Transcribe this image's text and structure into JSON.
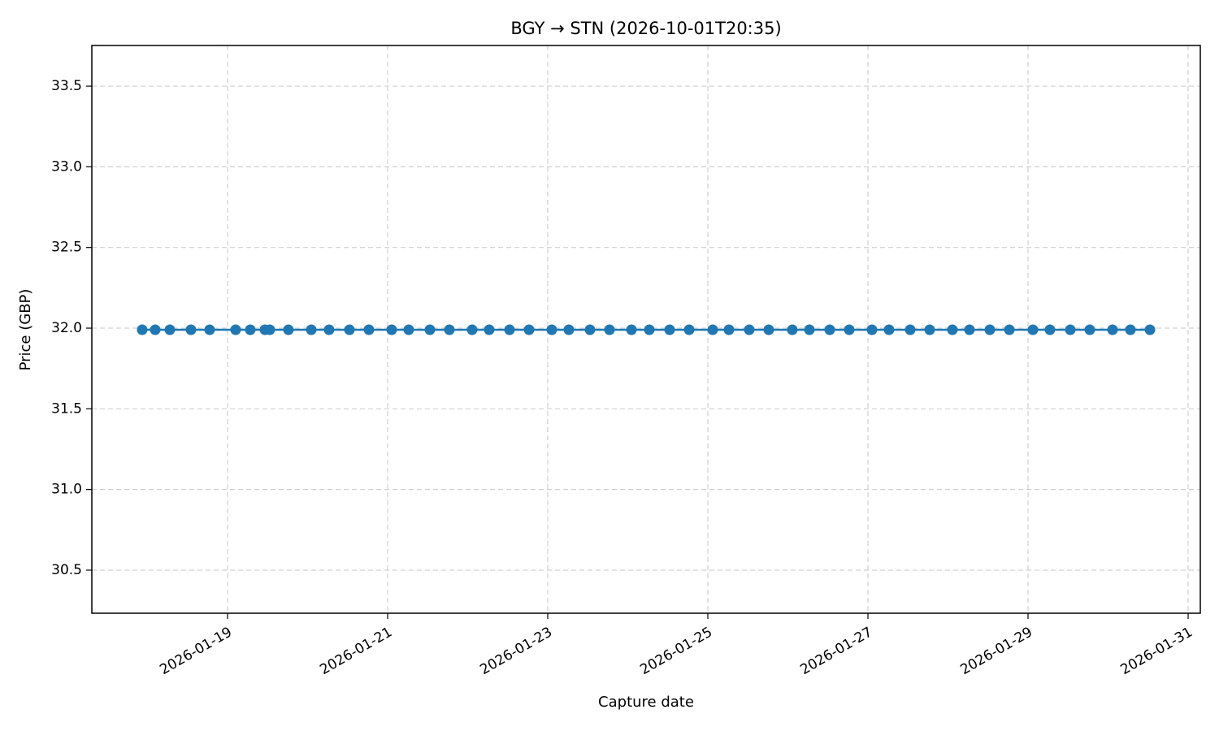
{
  "chart_data": {
    "type": "line",
    "title": "BGY → STN (2026-10-01T20:35)",
    "x_label": "Capture date",
    "y_label": "Price (GBP)",
    "x": [
      "2026-01-17T22:25",
      "2026-01-18T02:19",
      "2026-01-18T06:42",
      "2026-01-18T13:02",
      "2026-01-18T18:38",
      "2026-01-19T02:26",
      "2026-01-19T06:49",
      "2026-01-19T11:13",
      "2026-01-19T12:40",
      "2026-01-19T18:16",
      "2026-01-20T01:06",
      "2026-01-20T06:27",
      "2026-01-20T12:33",
      "2026-01-20T18:24",
      "2026-01-21T01:13",
      "2026-01-21T06:20",
      "2026-01-21T12:40",
      "2026-01-21T18:31",
      "2026-01-22T01:20",
      "2026-01-22T06:27",
      "2026-01-22T12:33",
      "2026-01-22T18:24",
      "2026-01-23T01:13",
      "2026-01-23T06:20",
      "2026-01-23T12:40",
      "2026-01-23T18:31",
      "2026-01-24T01:06",
      "2026-01-24T06:27",
      "2026-01-24T12:33",
      "2026-01-24T18:24",
      "2026-01-25T01:28",
      "2026-01-25T06:20",
      "2026-01-25T12:25",
      "2026-01-25T18:16",
      "2026-01-26T01:20",
      "2026-01-26T06:27",
      "2026-01-26T12:33",
      "2026-01-26T18:24",
      "2026-01-27T01:13",
      "2026-01-27T06:20",
      "2026-01-27T12:40",
      "2026-01-27T18:31",
      "2026-01-28T01:20",
      "2026-01-28T06:27",
      "2026-01-28T12:33",
      "2026-01-28T18:24",
      "2026-01-29T01:28",
      "2026-01-29T06:34",
      "2026-01-29T12:40",
      "2026-01-29T18:31",
      "2026-01-30T01:20",
      "2026-01-30T06:42",
      "2026-01-30T12:33"
    ],
    "series": [
      {
        "color": "#1f77b4",
        "values": [
          31.99,
          31.99,
          31.99,
          31.99,
          31.99,
          31.99,
          31.99,
          31.99,
          31.99,
          31.99,
          31.99,
          31.99,
          31.99,
          31.99,
          31.99,
          31.99,
          31.99,
          31.99,
          31.99,
          31.99,
          31.99,
          31.99,
          31.99,
          31.99,
          31.99,
          31.99,
          31.99,
          31.99,
          31.99,
          31.99,
          31.99,
          31.99,
          31.99,
          31.99,
          31.99,
          31.99,
          31.99,
          31.99,
          31.99,
          31.99,
          31.99,
          31.99,
          31.99,
          31.99,
          31.99,
          31.99,
          31.99,
          31.99,
          31.99,
          31.99,
          31.99,
          31.99,
          31.99
        ]
      }
    ],
    "xlim": [
      "2026-01-17T07:19",
      "2026-01-31T03:39"
    ],
    "xticks": [
      "2026-01-19",
      "2026-01-21",
      "2026-01-23",
      "2026-01-25",
      "2026-01-27",
      "2026-01-29",
      "2026-01-31"
    ],
    "ylim": [
      30.233,
      33.752
    ],
    "yticks": [
      30.5,
      {
        "value": 31,
        "label": "31.0"
      },
      31.5,
      {
        "value": 32,
        "label": "32.0"
      },
      32.5,
      {
        "value": 33,
        "label": "33.0"
      },
      33.5
    ],
    "grid": true
  }
}
